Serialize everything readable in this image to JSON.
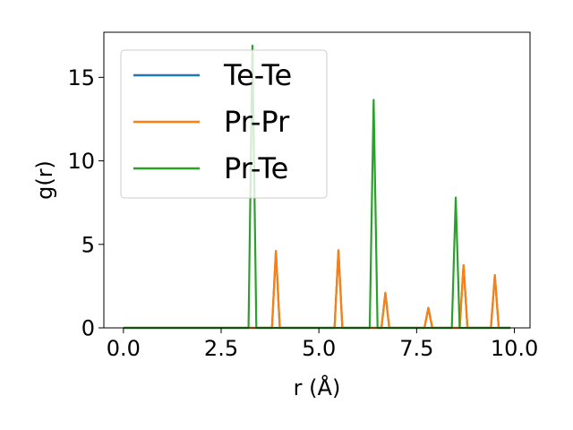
{
  "chart_data": {
    "type": "line",
    "xlabel": "r (Å)",
    "ylabel": "g(r)",
    "xlim": [
      -0.5,
      10.4
    ],
    "ylim": [
      0,
      17.7
    ],
    "xticks": [
      0.0,
      2.5,
      5.0,
      7.5,
      10.0
    ],
    "xtick_labels": [
      "0.0",
      "2.5",
      "5.0",
      "7.5",
      "10.0"
    ],
    "yticks": [
      0,
      5,
      10,
      15
    ],
    "ytick_labels": [
      "0",
      "5",
      "10",
      "15"
    ],
    "grid": false,
    "legend_position": "upper-left",
    "series": [
      {
        "name": "Te-Te",
        "color": "#1f77b4",
        "points": [
          [
            0.0,
            0
          ],
          [
            3.8,
            0
          ],
          [
            3.9,
            4.6
          ],
          [
            4.0,
            0
          ],
          [
            5.4,
            0
          ],
          [
            5.5,
            4.65
          ],
          [
            5.6,
            0
          ],
          [
            6.6,
            0
          ],
          [
            6.7,
            2.1
          ],
          [
            6.8,
            0
          ],
          [
            7.7,
            0
          ],
          [
            7.8,
            1.2
          ],
          [
            7.9,
            0
          ],
          [
            8.6,
            0
          ],
          [
            8.7,
            3.75
          ],
          [
            8.8,
            0
          ],
          [
            9.4,
            0
          ],
          [
            9.5,
            3.15
          ],
          [
            9.6,
            0
          ],
          [
            9.9,
            0
          ]
        ]
      },
      {
        "name": "Pr-Pr",
        "color": "#ff7f0e",
        "points": [
          [
            0.0,
            0
          ],
          [
            3.8,
            0
          ],
          [
            3.9,
            4.6
          ],
          [
            4.0,
            0
          ],
          [
            5.4,
            0
          ],
          [
            5.5,
            4.65
          ],
          [
            5.6,
            0
          ],
          [
            6.6,
            0
          ],
          [
            6.7,
            2.1
          ],
          [
            6.8,
            0
          ],
          [
            7.7,
            0
          ],
          [
            7.8,
            1.2
          ],
          [
            7.9,
            0
          ],
          [
            8.6,
            0
          ],
          [
            8.7,
            3.75
          ],
          [
            8.8,
            0
          ],
          [
            9.4,
            0
          ],
          [
            9.5,
            3.15
          ],
          [
            9.6,
            0
          ],
          [
            9.9,
            0
          ]
        ]
      },
      {
        "name": "Pr-Te",
        "color": "#2ca02c",
        "points": [
          [
            0.0,
            0
          ],
          [
            3.2,
            0
          ],
          [
            3.3,
            16.9
          ],
          [
            3.4,
            0
          ],
          [
            6.3,
            0
          ],
          [
            6.4,
            13.65
          ],
          [
            6.5,
            0
          ],
          [
            8.4,
            0
          ],
          [
            8.5,
            7.8
          ],
          [
            8.6,
            0
          ],
          [
            9.9,
            0
          ]
        ]
      }
    ]
  }
}
